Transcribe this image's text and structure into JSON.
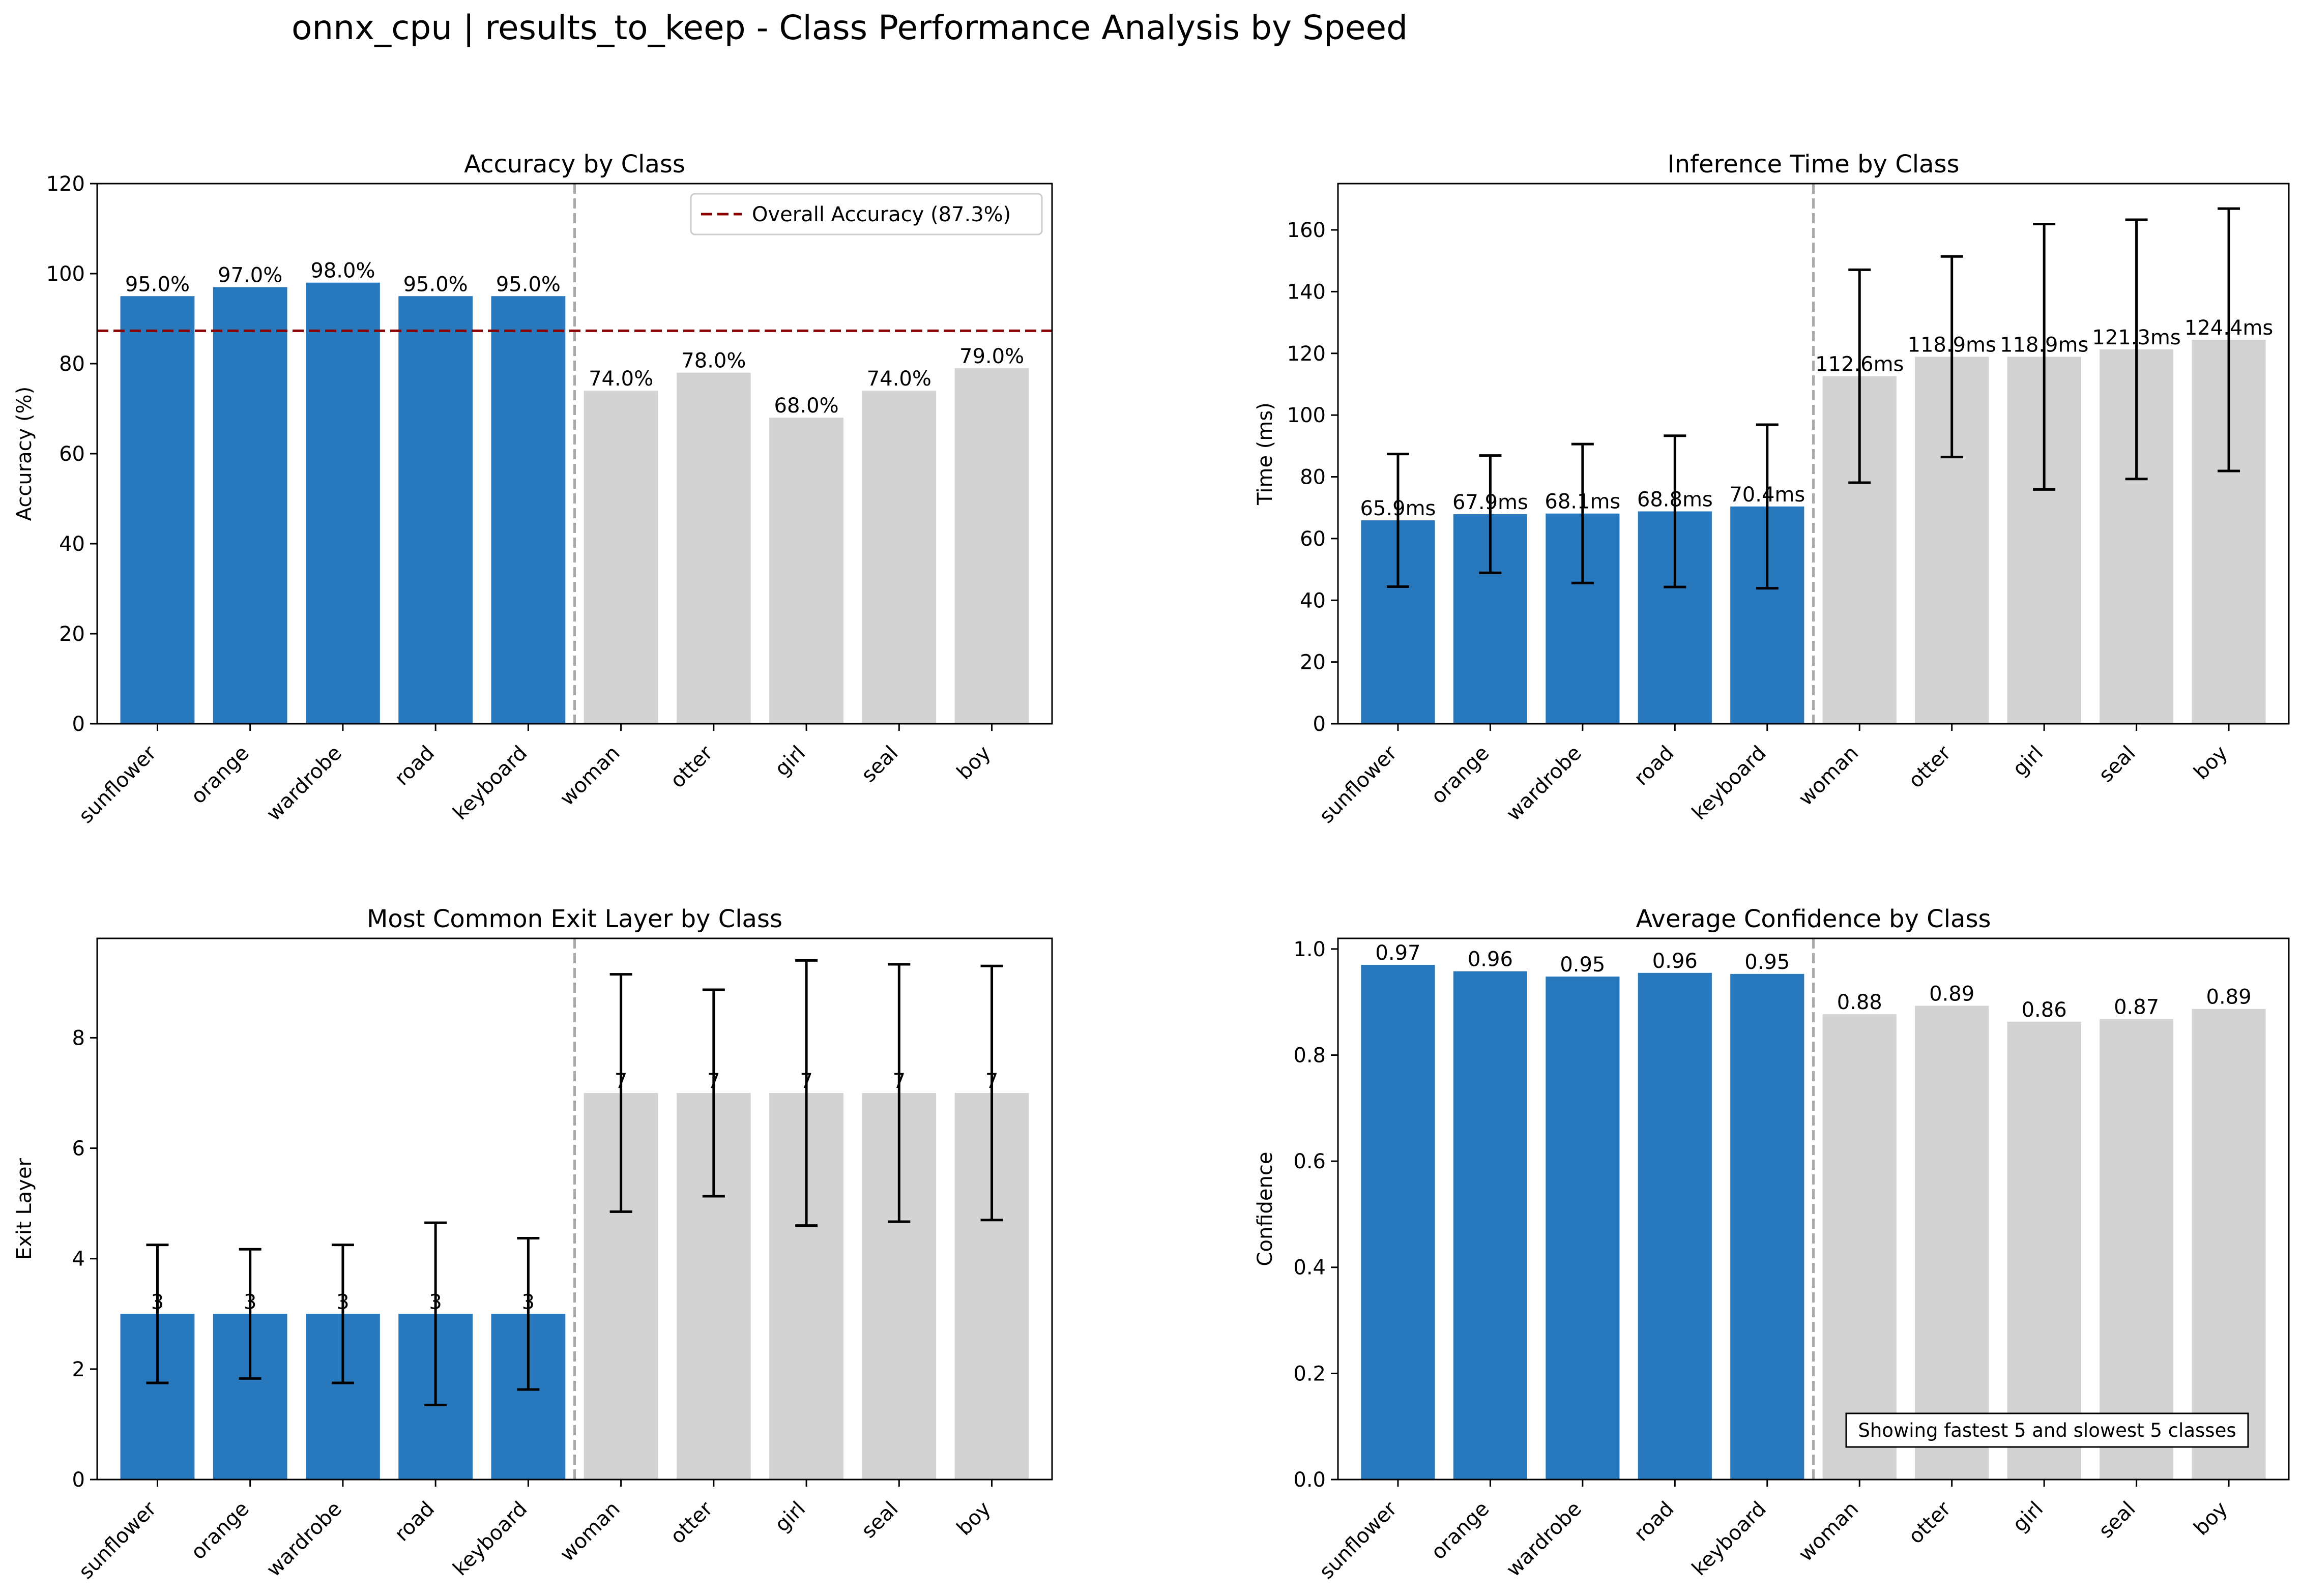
{
  "suptitle": "onnx_cpu | results_to_keep - Class Performance Analysis by Speed",
  "colors": {
    "fast": "#2878bd",
    "slow": "#d3d3d3",
    "overall_line": "#8b0000",
    "separator": "#a9a9a9",
    "error_bar": "#000000"
  },
  "categories": [
    "sunflower",
    "orange",
    "wardrobe",
    "road",
    "keyboard",
    "woman",
    "otter",
    "girl",
    "seal",
    "boy"
  ],
  "fast_count": 5,
  "chart_data": [
    {
      "type": "bar",
      "title": "Accuracy by Class",
      "ylabel": "Accuracy (%)",
      "ylim": [
        0,
        120
      ],
      "yticks": [
        0,
        20,
        40,
        60,
        80,
        100,
        120
      ],
      "values": [
        95.0,
        97.0,
        98.0,
        95.0,
        95.0,
        74.0,
        78.0,
        68.0,
        74.0,
        79.0
      ],
      "value_labels": [
        "95.0%",
        "97.0%",
        "98.0%",
        "95.0%",
        "95.0%",
        "74.0%",
        "78.0%",
        "68.0%",
        "74.0%",
        "79.0%"
      ],
      "reference_line": {
        "value": 87.3,
        "label": "Overall Accuracy (87.3%)"
      },
      "legend_placement": "top-right",
      "grid": false
    },
    {
      "type": "bar",
      "title": "Inference Time by Class",
      "ylabel": "Time (ms)",
      "ylim": [
        0,
        175
      ],
      "yticks": [
        0,
        20,
        40,
        60,
        80,
        100,
        120,
        140,
        160
      ],
      "values": [
        65.9,
        67.9,
        68.1,
        68.8,
        70.4,
        112.6,
        118.9,
        118.9,
        121.3,
        124.4
      ],
      "errors": [
        21.5,
        19.0,
        22.5,
        24.5,
        26.5,
        34.5,
        32.5,
        43.0,
        42.0,
        42.5
      ],
      "value_labels": [
        "65.9ms",
        "67.9ms",
        "68.1ms",
        "68.8ms",
        "70.4ms",
        "112.6ms",
        "118.9ms",
        "118.9ms",
        "121.3ms",
        "124.4ms"
      ],
      "grid": false
    },
    {
      "type": "bar",
      "title": "Most Common Exit Layer by Class",
      "ylabel": "Exit Layer",
      "ylim": [
        0,
        9.8
      ],
      "yticks": [
        0,
        2,
        4,
        6,
        8
      ],
      "values": [
        3,
        3,
        3,
        3,
        3,
        7,
        7,
        7,
        7,
        7
      ],
      "errors": [
        1.25,
        1.17,
        1.25,
        1.65,
        1.37,
        2.15,
        1.87,
        2.4,
        2.33,
        2.3
      ],
      "value_labels": [
        "3",
        "3",
        "3",
        "3",
        "3",
        "7",
        "7",
        "7",
        "7",
        "7"
      ],
      "grid": false
    },
    {
      "type": "bar",
      "title": "Average Confidence by Class",
      "ylabel": "Confidence",
      "ylim": [
        0,
        1.02
      ],
      "yticks": [
        0.0,
        0.2,
        0.4,
        0.6,
        0.8,
        1.0
      ],
      "values": [
        0.97,
        0.958,
        0.948,
        0.955,
        0.953,
        0.877,
        0.893,
        0.863,
        0.868,
        0.887
      ],
      "value_labels": [
        "0.97",
        "0.96",
        "0.95",
        "0.96",
        "0.95",
        "0.88",
        "0.89",
        "0.86",
        "0.87",
        "0.89"
      ],
      "annotation": "Showing fastest 5 and slowest 5 classes",
      "grid": false
    }
  ]
}
